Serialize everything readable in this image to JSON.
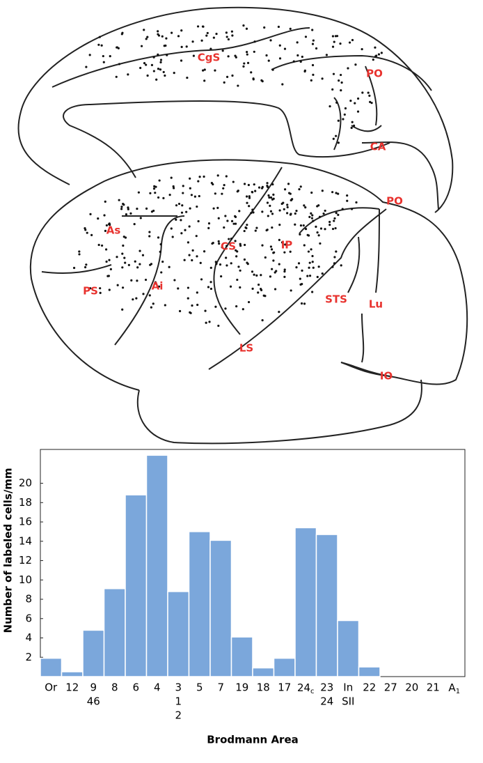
{
  "diagram": {
    "labels": [
      "CgS",
      "PO",
      "CA",
      "PO",
      "As",
      "CS",
      "IP",
      "PS",
      "Ai",
      "STS",
      "Lu",
      "LS",
      "IO"
    ]
  },
  "chart_data": {
    "type": "bar",
    "y_label": "Number of labeled cells/mm",
    "x_label": "Brodmann Area",
    "categories": [
      [
        "Or"
      ],
      [
        "12"
      ],
      [
        "9",
        "46"
      ],
      [
        "8"
      ],
      [
        "6"
      ],
      [
        "4"
      ],
      [
        "3",
        "1",
        "2"
      ],
      [
        "5"
      ],
      [
        "7"
      ],
      [
        "19"
      ],
      [
        "18"
      ],
      [
        "17"
      ],
      [
        {
          "text": "24",
          "sub": "c"
        }
      ],
      [
        "23",
        "24"
      ],
      [
        "In",
        "SII"
      ],
      [
        "22"
      ],
      [
        "27"
      ],
      [
        "20"
      ],
      [
        "21"
      ],
      [
        {
          "text": "A",
          "sub": "1"
        }
      ]
    ],
    "values": [
      1.9,
      0.5,
      4.8,
      9.1,
      18.8,
      22.9,
      8.8,
      15.0,
      14.1,
      4.1,
      0.9,
      1.9,
      15.4,
      14.7,
      5.8,
      1.0,
      0,
      0,
      0,
      0
    ],
    "color": "#7ba7db",
    "ylim": [
      0,
      23.5
    ],
    "yticks": [
      2,
      4,
      6,
      8,
      10,
      12,
      14,
      16,
      18,
      20
    ]
  }
}
